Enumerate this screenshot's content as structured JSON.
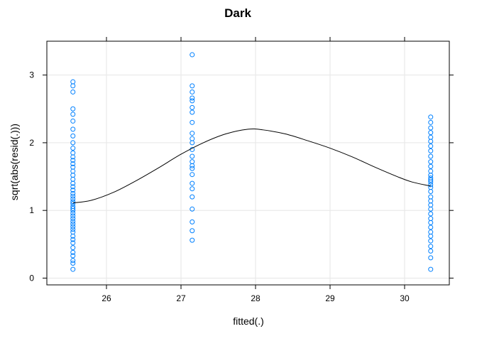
{
  "chart_data": {
    "type": "scatter",
    "title": "Dark",
    "xlabel": "fitted(.)",
    "ylabel": "sqrt(abs(resid(.)))",
    "xlim": [
      25.2,
      30.6
    ],
    "ylim": [
      -0.1,
      3.5
    ],
    "xticks": [
      26,
      27,
      28,
      29,
      30
    ],
    "yticks": [
      0,
      1,
      2,
      3
    ],
    "grid": true,
    "point_color": "#0080ff",
    "line_color": "#000000",
    "grid_color": "#e6e6e6",
    "groups": [
      {
        "x": 25.55,
        "y": [
          0.13,
          0.22,
          0.26,
          0.33,
          0.38,
          0.45,
          0.52,
          0.57,
          0.62,
          0.68,
          0.72,
          0.76,
          0.8,
          0.84,
          0.88,
          0.92,
          0.96,
          1.0,
          1.03,
          1.06,
          1.1,
          1.13,
          1.17,
          1.21,
          1.25,
          1.3,
          1.35,
          1.4,
          1.46,
          1.52,
          1.58,
          1.64,
          1.69,
          1.74,
          1.79,
          1.85,
          1.92,
          2.0,
          2.1,
          2.2,
          2.32,
          2.42,
          2.5,
          2.75,
          2.84,
          2.9
        ]
      },
      {
        "x": 27.15,
        "y": [
          0.56,
          0.7,
          0.83,
          1.02,
          1.2,
          1.32,
          1.4,
          1.53,
          1.62,
          1.66,
          1.72,
          1.8,
          1.9,
          2.0,
          2.06,
          2.14,
          2.3,
          2.45,
          2.52,
          2.62,
          2.66,
          2.75,
          2.84,
          3.3
        ]
      },
      {
        "x": 30.35,
        "y": [
          0.13,
          0.3,
          0.4,
          0.47,
          0.55,
          0.62,
          0.68,
          0.75,
          0.82,
          0.88,
          0.95,
          1.02,
          1.08,
          1.14,
          1.2,
          1.28,
          1.34,
          1.38,
          1.42,
          1.45,
          1.48,
          1.52,
          1.58,
          1.65,
          1.72,
          1.8,
          1.88,
          1.95,
          2.02,
          2.08,
          2.15,
          2.22,
          2.3,
          2.38
        ]
      }
    ],
    "smooth_line": {
      "x": [
        25.55,
        25.8,
        26.1,
        26.4,
        26.7,
        27.0,
        27.3,
        27.6,
        27.9,
        28.1,
        28.4,
        28.7,
        29.0,
        29.3,
        29.6,
        29.9,
        30.1,
        30.35
      ],
      "y": [
        1.11,
        1.15,
        1.27,
        1.44,
        1.63,
        1.83,
        2.0,
        2.13,
        2.2,
        2.19,
        2.13,
        2.03,
        1.92,
        1.79,
        1.64,
        1.5,
        1.42,
        1.36
      ]
    }
  }
}
